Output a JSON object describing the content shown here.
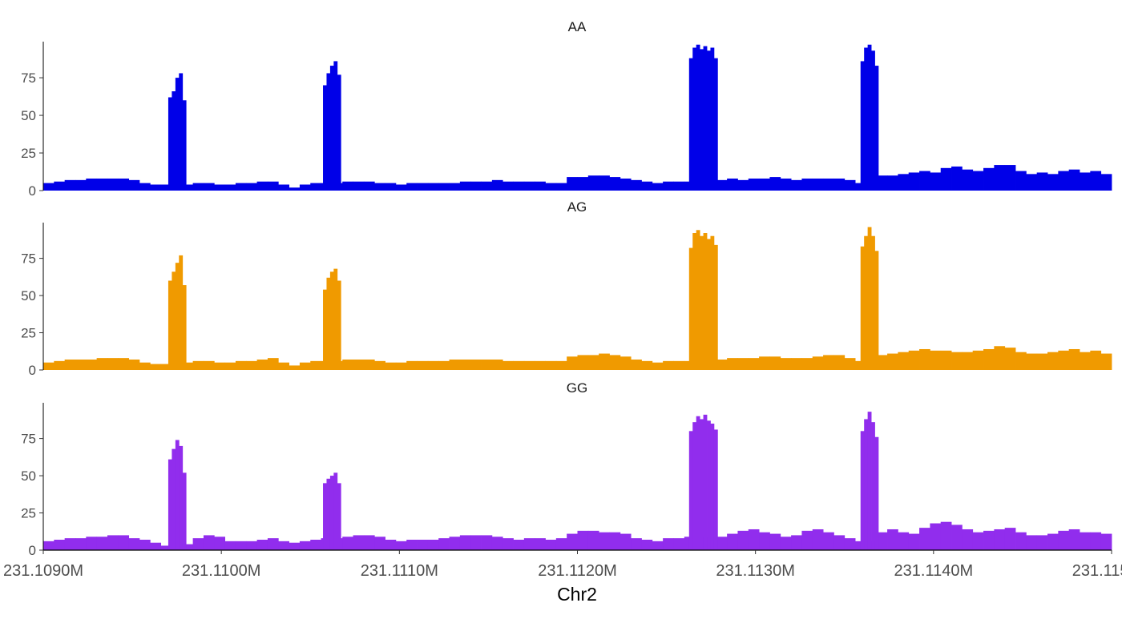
{
  "chart_data": {
    "type": "bar",
    "xlabel": "Chr2",
    "xlim": [
      231.109,
      231.115
    ],
    "x_ticks": [
      231.109,
      231.11,
      231.111,
      231.112,
      231.113,
      231.114,
      231.115
    ],
    "x_tick_labels": [
      "231.1090M",
      "231.1100M",
      "231.1110M",
      "231.1120M",
      "231.1130M",
      "231.1140M",
      "231.1150M"
    ],
    "ylim": [
      0,
      99
    ],
    "y_ticks": [
      0,
      25,
      50,
      75
    ],
    "y_tick_labels": [
      "0",
      "25",
      "50",
      "75"
    ],
    "baseline_bin_bp": 60,
    "peak_bin_bp": 20,
    "series": [
      {
        "name": "AA",
        "color": "#0000e8",
        "baseline": [
          5,
          6,
          7,
          7,
          8,
          8,
          8,
          8,
          7,
          5,
          4,
          4,
          4,
          4,
          5,
          5,
          4,
          4,
          5,
          5,
          6,
          6,
          4,
          2,
          4,
          5,
          5,
          5,
          6,
          6,
          6,
          5,
          5,
          4,
          5,
          5,
          5,
          5,
          5,
          6,
          6,
          6,
          7,
          6,
          6,
          6,
          6,
          5,
          5,
          9,
          9,
          10,
          10,
          9,
          8,
          7,
          6,
          5,
          6,
          6,
          6,
          7,
          7,
          7,
          8,
          7,
          8,
          8,
          9,
          8,
          7,
          8,
          8,
          8,
          8,
          7,
          5,
          5,
          10,
          10,
          11,
          12,
          13,
          12,
          15,
          16,
          14,
          13,
          15,
          17,
          17,
          13,
          11,
          12,
          11,
          13,
          14,
          12,
          13,
          11
        ],
        "peaks": [
          {
            "start": 231.109702,
            "values": [
              62,
              66,
              75,
              78,
              60
            ]
          },
          {
            "start": 231.110571,
            "values": [
              70,
              78,
              83,
              86,
              77
            ]
          },
          {
            "start": 231.112627,
            "values": [
              88,
              95,
              97,
              94,
              96,
              93,
              95,
              88
            ]
          },
          {
            "start": 231.11359,
            "values": [
              86,
              95,
              97,
              93,
              83
            ]
          }
        ]
      },
      {
        "name": "AG",
        "color": "#f09a00",
        "baseline": [
          5,
          6,
          7,
          7,
          7,
          8,
          8,
          8,
          7,
          5,
          4,
          4,
          4,
          5,
          6,
          6,
          5,
          5,
          6,
          6,
          7,
          8,
          5,
          3,
          5,
          6,
          6,
          6,
          7,
          7,
          7,
          6,
          5,
          5,
          6,
          6,
          6,
          6,
          7,
          7,
          7,
          7,
          7,
          6,
          6,
          6,
          6,
          6,
          6,
          9,
          10,
          10,
          11,
          10,
          9,
          7,
          6,
          5,
          6,
          6,
          6,
          7,
          7,
          7,
          8,
          8,
          8,
          9,
          9,
          8,
          8,
          8,
          9,
          10,
          10,
          8,
          6,
          5,
          10,
          11,
          12,
          13,
          14,
          13,
          13,
          12,
          12,
          13,
          14,
          16,
          15,
          12,
          11,
          11,
          12,
          13,
          14,
          12,
          13,
          11
        ],
        "peaks": [
          {
            "start": 231.109702,
            "values": [
              60,
              66,
              72,
              77,
              57
            ]
          },
          {
            "start": 231.110571,
            "values": [
              54,
              62,
              66,
              68,
              60
            ]
          },
          {
            "start": 231.112627,
            "values": [
              82,
              92,
              94,
              90,
              92,
              88,
              90,
              84
            ]
          },
          {
            "start": 231.11359,
            "values": [
              83,
              90,
              96,
              90,
              80
            ]
          }
        ]
      },
      {
        "name": "GG",
        "color": "#912ded",
        "baseline": [
          6,
          7,
          8,
          8,
          9,
          9,
          10,
          10,
          8,
          7,
          5,
          3,
          3,
          4,
          8,
          10,
          9,
          6,
          6,
          6,
          7,
          8,
          6,
          5,
          6,
          7,
          8,
          8,
          9,
          10,
          10,
          9,
          7,
          6,
          7,
          7,
          7,
          8,
          9,
          10,
          10,
          10,
          9,
          8,
          7,
          8,
          8,
          7,
          8,
          11,
          13,
          13,
          12,
          12,
          11,
          8,
          7,
          6,
          8,
          8,
          9,
          9,
          9,
          9,
          11,
          13,
          14,
          12,
          11,
          9,
          10,
          13,
          14,
          12,
          10,
          8,
          6,
          6,
          12,
          14,
          12,
          11,
          15,
          18,
          19,
          17,
          14,
          12,
          13,
          14,
          15,
          12,
          10,
          10,
          11,
          13,
          14,
          12,
          12,
          11
        ],
        "peaks": [
          {
            "start": 231.109702,
            "values": [
              61,
              68,
              74,
              70,
              52
            ]
          },
          {
            "start": 231.110571,
            "values": [
              45,
              48,
              50,
              52,
              45
            ]
          },
          {
            "start": 231.112627,
            "values": [
              80,
              86,
              90,
              88,
              91,
              87,
              85,
              81
            ]
          },
          {
            "start": 231.11359,
            "values": [
              80,
              88,
              93,
              86,
              76
            ]
          }
        ]
      }
    ]
  }
}
